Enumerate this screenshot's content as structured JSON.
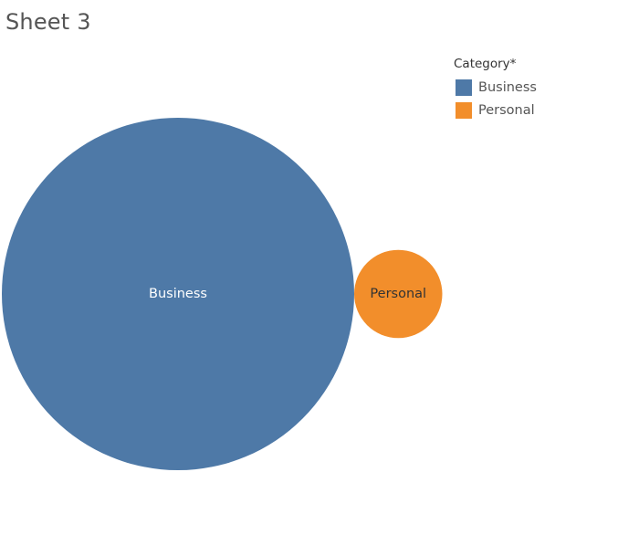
{
  "sheet": {
    "title": "Sheet 3"
  },
  "legend": {
    "title": "Category*",
    "items": [
      {
        "label": "Business",
        "color": "#4e79a7"
      },
      {
        "label": "Personal",
        "color": "#f28e2b"
      }
    ]
  },
  "chart_data": {
    "type": "bubble",
    "series": [
      {
        "name": "Business",
        "category": "Business",
        "value": 16.0,
        "color": "#4e79a7",
        "label_color": "#ffffff"
      },
      {
        "name": "Personal",
        "category": "Personal",
        "value": 1.0,
        "color": "#f28e2b",
        "label_color": "#333333"
      }
    ],
    "legend_position": "top-right",
    "grid": false
  }
}
